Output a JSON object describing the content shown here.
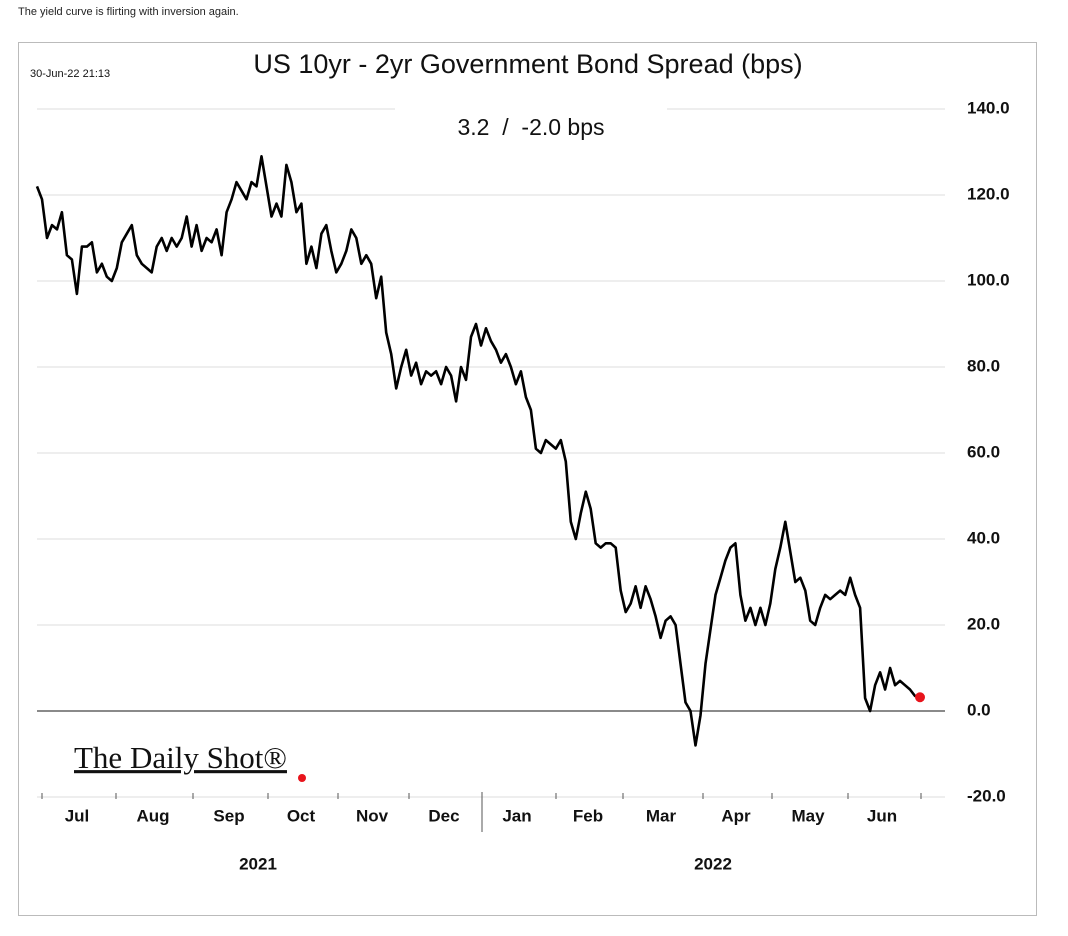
{
  "caption": "The yield curve is flirting with inversion again.",
  "chart_data": {
    "type": "line",
    "title": "US 10yr - 2yr Government Bond Spread (bps)",
    "subtitle": "3.2  /  -2.0 bps",
    "timestamp": "30-Jun-22 21:13",
    "logo": "The Daily Shot®",
    "months": [
      "Jul",
      "Aug",
      "Sep",
      "Oct",
      "Nov",
      "Dec",
      "Jan",
      "Feb",
      "Mar",
      "Apr",
      "May",
      "Jun"
    ],
    "years": [
      "2021",
      "2022"
    ],
    "ylim": [
      -20,
      140
    ],
    "yticks": [
      {
        "value": -20,
        "label": "-20.0"
      },
      {
        "value": 0,
        "label": "0.0"
      },
      {
        "value": 20,
        "label": "20.0"
      },
      {
        "value": 40,
        "label": "40.0"
      },
      {
        "value": 60,
        "label": "60.0"
      },
      {
        "value": 80,
        "label": "80.0"
      },
      {
        "value": 100,
        "label": "100.0"
      },
      {
        "value": 120,
        "label": "120.0"
      },
      {
        "value": 140,
        "label": "140.0"
      }
    ],
    "grid": true,
    "series": [
      {
        "name": "US 10yr - 2yr spread",
        "color": "#000000",
        "last_point_color": "#e8141c",
        "values": [
          122,
          119,
          110,
          113,
          112,
          116,
          106,
          105,
          97,
          108,
          108,
          109,
          102,
          104,
          101,
          100,
          103,
          109,
          111,
          113,
          106,
          104,
          103,
          102,
          108,
          110,
          107,
          110,
          108,
          110,
          115,
          108,
          113,
          107,
          110,
          109,
          112,
          106,
          116,
          119,
          123,
          121,
          119,
          123,
          122,
          129,
          122,
          115,
          118,
          115,
          127,
          123,
          116,
          118,
          104,
          108,
          103,
          111,
          113,
          107,
          102,
          104,
          107,
          112,
          110,
          104,
          106,
          104,
          96,
          101,
          88,
          83,
          75,
          80,
          84,
          78,
          81,
          76,
          79,
          78,
          79,
          76,
          80,
          78,
          72,
          80,
          77,
          87,
          90,
          85,
          89,
          86,
          84,
          81,
          83,
          80,
          76,
          79,
          73,
          70,
          61,
          60,
          63,
          62,
          61,
          63,
          58,
          44,
          40,
          46,
          51,
          47,
          39,
          38,
          39,
          39,
          38,
          28,
          23,
          25,
          29,
          24,
          29,
          26,
          22,
          17,
          21,
          22,
          20,
          11,
          2,
          0,
          -8,
          -1,
          11,
          19,
          27,
          31,
          35,
          38,
          39,
          27,
          21,
          24,
          20,
          24,
          20,
          25,
          33,
          38,
          44,
          37,
          30,
          31,
          28,
          21,
          20,
          24,
          27,
          26,
          27,
          28,
          27,
          31,
          27,
          24,
          3,
          0,
          6,
          9,
          5,
          10,
          6,
          7,
          6,
          5,
          3.5,
          3.2
        ]
      }
    ]
  }
}
